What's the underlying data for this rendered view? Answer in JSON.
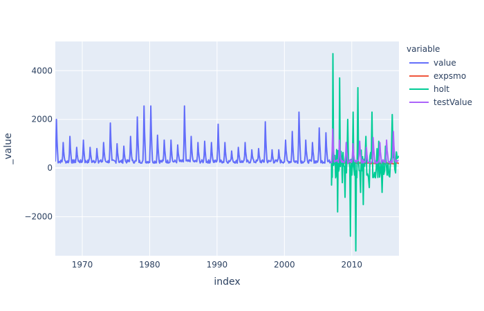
{
  "chart_data": {
    "type": "line",
    "title": "",
    "xlabel": "index",
    "ylabel": "_value",
    "xlim": [
      1966,
      2017
    ],
    "ylim": [
      -3600,
      5200
    ],
    "x_ticks": [
      1970,
      1980,
      1990,
      2000,
      2010
    ],
    "y_ticks": [
      -2000,
      0,
      2000,
      4000
    ],
    "y_tick_labels": [
      "−2000",
      "0",
      "2000",
      "4000"
    ],
    "grid": true,
    "background": "#e5ecf6",
    "legend": {
      "title": "variable",
      "placement": "right"
    },
    "series": [
      {
        "name": "value",
        "color": "#636efa",
        "x_range": [
          1966,
          2017
        ],
        "peaks": [
          [
            1966.1,
            2000
          ],
          [
            1967.2,
            1050
          ],
          [
            1968.2,
            1300
          ],
          [
            1969.2,
            850
          ],
          [
            1970.2,
            1150
          ],
          [
            1971.2,
            850
          ],
          [
            1972.2,
            800
          ],
          [
            1973.2,
            1050
          ],
          [
            1974.2,
            1850
          ],
          [
            1975.2,
            1000
          ],
          [
            1976.2,
            900
          ],
          [
            1977.2,
            1300
          ],
          [
            1978.2,
            2100
          ],
          [
            1979.2,
            2550
          ],
          [
            1980.2,
            2550
          ],
          [
            1981.2,
            1350
          ],
          [
            1982.2,
            1150
          ],
          [
            1983.2,
            1150
          ],
          [
            1984.2,
            950
          ],
          [
            1985.2,
            2550
          ],
          [
            1986.2,
            1300
          ],
          [
            1987.2,
            1050
          ],
          [
            1988.2,
            1100
          ],
          [
            1989.2,
            1050
          ],
          [
            1990.2,
            1800
          ],
          [
            1991.2,
            1050
          ],
          [
            1992.2,
            700
          ],
          [
            1993.2,
            850
          ],
          [
            1994.2,
            1050
          ],
          [
            1995.2,
            750
          ],
          [
            1996.2,
            800
          ],
          [
            1997.2,
            1900
          ],
          [
            1998.2,
            750
          ],
          [
            1999.2,
            750
          ],
          [
            2000.2,
            1150
          ],
          [
            2001.2,
            1500
          ],
          [
            2002.2,
            2300
          ],
          [
            2003.2,
            1150
          ],
          [
            2004.2,
            1050
          ],
          [
            2005.2,
            1650
          ],
          [
            2006.2,
            1450
          ]
        ],
        "baseline": 200
      },
      {
        "name": "expsmo",
        "color": "#ef553b",
        "x_range": [
          2007,
          2017
        ],
        "approx_value": 200
      },
      {
        "name": "holt",
        "color": "#00cc96",
        "x_range": [
          2007,
          2017
        ],
        "extremes": [
          [
            2007.0,
            -700
          ],
          [
            2007.2,
            4700
          ],
          [
            2007.6,
            -400
          ],
          [
            2007.9,
            -1800
          ],
          [
            2008.2,
            3700
          ],
          [
            2008.6,
            -600
          ],
          [
            2009.0,
            -1200
          ],
          [
            2009.4,
            2000
          ],
          [
            2009.8,
            -2800
          ],
          [
            2010.2,
            2300
          ],
          [
            2010.6,
            -3400
          ],
          [
            2010.9,
            3300
          ],
          [
            2011.3,
            -1000
          ],
          [
            2011.7,
            -1500
          ],
          [
            2012.1,
            1300
          ],
          [
            2012.6,
            -800
          ],
          [
            2013.0,
            2300
          ],
          [
            2013.5,
            -400
          ],
          [
            2014.0,
            1100
          ],
          [
            2014.5,
            -1000
          ],
          [
            2015.0,
            900
          ],
          [
            2015.5,
            -300
          ],
          [
            2016.0,
            2200
          ],
          [
            2016.5,
            -200
          ],
          [
            2017.0,
            500
          ]
        ]
      },
      {
        "name": "testValue",
        "color": "#ab63fa",
        "x_range": [
          2007,
          2017
        ],
        "peaks": [
          [
            2007.2,
            1600
          ],
          [
            2008.2,
            1150
          ],
          [
            2009.2,
            1050
          ],
          [
            2010.2,
            1000
          ],
          [
            2011.2,
            1100
          ],
          [
            2012.2,
            850
          ],
          [
            2013.2,
            1250
          ],
          [
            2014.2,
            1050
          ],
          [
            2015.2,
            1150
          ],
          [
            2016.2,
            1500
          ]
        ],
        "baseline": 200
      }
    ]
  }
}
